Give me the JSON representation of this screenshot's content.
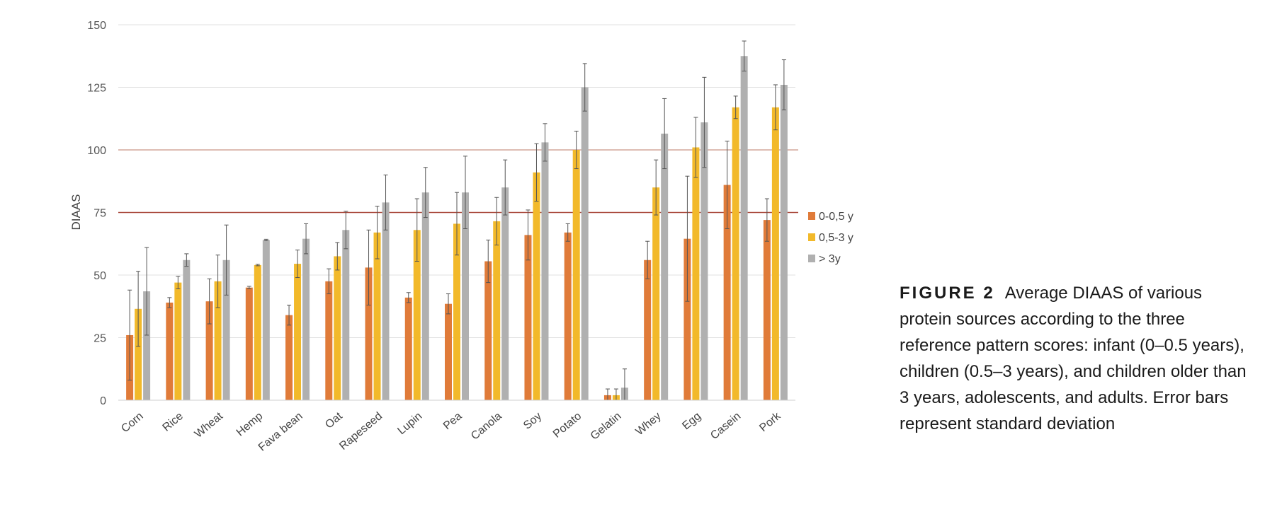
{
  "chart_data": {
    "type": "bar",
    "ylabel": "DIAAS",
    "xlabel": "",
    "ylim": [
      0,
      150
    ],
    "yticks": [
      0,
      25,
      50,
      75,
      100,
      125,
      150
    ],
    "grid": true,
    "legend_position": "right",
    "reference_lines": [
      {
        "value": 100,
        "color": "#d4a59a"
      },
      {
        "value": 75,
        "color": "#a9493c"
      }
    ],
    "categories": [
      "Corn",
      "Rice",
      "Wheat",
      "Hemp",
      "Fava bean",
      "Oat",
      "Rapeseed",
      "Lupin",
      "Pea",
      "Canola",
      "Soy",
      "Potato",
      "Gelatin",
      "Whey",
      "Egg",
      "Casein",
      "Pork"
    ],
    "series": [
      {
        "name": "0-0,5 y",
        "color": "#e07b39",
        "values": [
          26,
          39,
          39.5,
          45,
          34,
          47.5,
          53,
          41,
          38.5,
          55.5,
          66,
          67,
          2,
          56,
          64.5,
          86,
          72
        ],
        "errors": [
          18,
          2,
          9,
          0.5,
          4,
          5,
          15,
          2,
          4,
          8.5,
          10,
          3.5,
          2.5,
          7.5,
          25,
          17.5,
          8.5
        ]
      },
      {
        "name": "0,5-3 y",
        "color": "#f2b92a",
        "values": [
          36.5,
          47,
          47.5,
          54,
          54.5,
          57.5,
          67,
          68,
          70.5,
          71.5,
          91,
          100,
          2,
          85,
          101,
          117,
          117
        ],
        "errors": [
          15,
          2.5,
          10.5,
          0.3,
          5.5,
          5.5,
          10.5,
          12.5,
          12.5,
          9.5,
          11.5,
          7.5,
          2.5,
          11,
          12,
          4.5,
          9
        ]
      },
      {
        "name": "> 3y",
        "color": "#b0b0b0",
        "values": [
          43.5,
          56,
          56,
          64,
          64.5,
          68,
          79,
          83,
          83,
          85,
          103,
          125,
          5,
          106.5,
          111,
          137.5,
          126
        ],
        "errors": [
          17.5,
          2.5,
          14,
          0.3,
          6,
          7.5,
          11,
          10,
          14.5,
          11,
          7.5,
          9.5,
          7.5,
          14,
          18,
          6,
          10
        ]
      }
    ]
  },
  "caption": {
    "label": "FIGURE 2",
    "text": "Average DIAAS of various protein sources according to the three reference pattern scores: infant (0–0.5 years), children (0.5–3 years), and children older than 3 years, adolescents, and adults. Error bars represent standard deviation"
  }
}
